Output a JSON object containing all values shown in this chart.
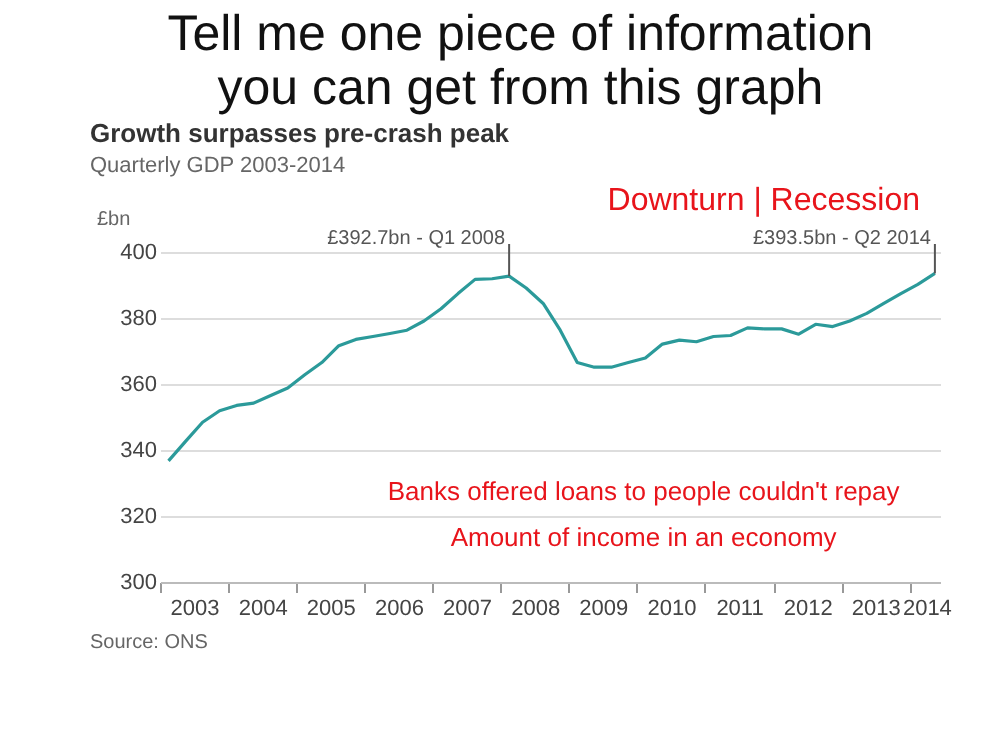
{
  "chart_data": {
    "type": "line",
    "title": "Growth surpasses pre-crash peak",
    "subtitle": "Quarterly GDP 2003-2014",
    "ylabel": "£bn",
    "x": [
      2003.125,
      2003.375,
      2003.625,
      2003.875,
      2004.125,
      2004.375,
      2004.625,
      2004.875,
      2005.125,
      2005.375,
      2005.625,
      2005.875,
      2006.125,
      2006.375,
      2006.625,
      2006.875,
      2007.125,
      2007.375,
      2007.625,
      2007.875,
      2008.125,
      2008.375,
      2008.625,
      2008.875,
      2009.125,
      2009.375,
      2009.625,
      2009.875,
      2010.125,
      2010.375,
      2010.625,
      2010.875,
      2011.125,
      2011.375,
      2011.625,
      2011.875,
      2012.125,
      2012.375,
      2012.625,
      2012.875,
      2013.125,
      2013.375,
      2013.625,
      2013.875,
      2014.125,
      2014.375
    ],
    "series": [
      {
        "color": "#2b9a9a",
        "values": [
          336.7,
          342.6,
          348.4,
          351.9,
          353.5,
          354.2,
          356.5,
          358.8,
          362.8,
          366.5,
          371.6,
          373.5,
          374.4,
          375.3,
          376.3,
          379.1,
          382.8,
          387.4,
          391.7,
          391.9,
          392.7,
          389.1,
          384.4,
          376.3,
          366.5,
          365.1,
          365.1,
          366.5,
          367.9,
          372.1,
          373.3,
          372.8,
          374.4,
          374.7,
          377.0,
          376.7,
          376.7,
          375.1,
          378.1,
          377.4,
          379.1,
          381.4,
          384.4,
          387.4,
          390.2,
          393.5
        ]
      }
    ],
    "xlim": [
      2003,
      2014.45
    ],
    "xticks": [
      {
        "value": 2003,
        "label": null
      },
      {
        "value": 2003.5,
        "label": "2003"
      },
      {
        "value": 2004,
        "label": null
      },
      {
        "value": 2004.5,
        "label": "2004"
      },
      {
        "value": 2005,
        "label": null
      },
      {
        "value": 2005.5,
        "label": "2005"
      },
      {
        "value": 2006,
        "label": null
      },
      {
        "value": 2006.5,
        "label": "2006"
      },
      {
        "value": 2007,
        "label": null
      },
      {
        "value": 2007.5,
        "label": "2007"
      },
      {
        "value": 2008,
        "label": null
      },
      {
        "value": 2008.5,
        "label": "2008"
      },
      {
        "value": 2009,
        "label": null
      },
      {
        "value": 2009.5,
        "label": "2009"
      },
      {
        "value": 2010,
        "label": null
      },
      {
        "value": 2010.5,
        "label": "2010"
      },
      {
        "value": 2011,
        "label": null
      },
      {
        "value": 2011.5,
        "label": "2011"
      },
      {
        "value": 2012,
        "label": null
      },
      {
        "value": 2012.5,
        "label": "2012"
      },
      {
        "value": 2013,
        "label": null
      },
      {
        "value": 2013.5,
        "label": "2013"
      },
      {
        "value": 2014,
        "label": null
      },
      {
        "value": 2014.25,
        "label": "2014"
      }
    ],
    "ylim": [
      300,
      400
    ],
    "yticks": [
      300,
      320,
      340,
      360,
      380,
      400
    ],
    "grid": "y",
    "legend": false,
    "annotations": [
      {
        "text": "£392.7bn - Q1 2008",
        "x": 2008.125,
        "y": 392.7
      },
      {
        "text": "£393.5bn - Q2 2014",
        "x": 2014.375,
        "y": 393.5
      },
      "Tell me one piece of information you can get from this graph",
      "Downturn | Recession",
      "Banks offered loans to people couldn't repay",
      "Amount of income in an economy",
      "Source: ONS"
    ]
  }
}
